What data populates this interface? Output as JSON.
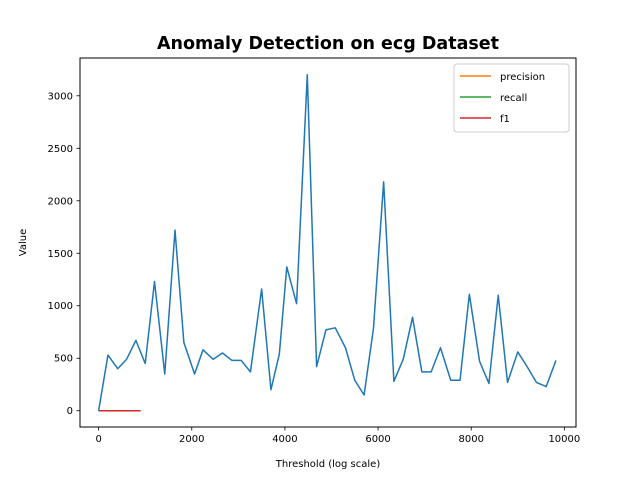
{
  "chart_data": {
    "type": "line",
    "title": "Anomaly Detection on ecg Dataset",
    "xlabel": "Threshold (log scale)",
    "ylabel": "Value",
    "xlim": [
      -400,
      10250
    ],
    "ylim": [
      -155,
      3360
    ],
    "xticks": [
      0,
      2000,
      4000,
      6000,
      8000,
      10000
    ],
    "yticks": [
      0,
      500,
      1000,
      1500,
      2000,
      2500,
      3000
    ],
    "legend_position": "top-right",
    "grid": false,
    "legend": [
      {
        "name": "precision",
        "color": "#ff7f0e"
      },
      {
        "name": "recall",
        "color": "#2ca02c"
      },
      {
        "name": "f1",
        "color": "#d62728"
      }
    ],
    "series": [
      {
        "name": "precision",
        "color": "#ff7f0e",
        "x": [
          0,
          900
        ],
        "y": [
          0,
          0
        ]
      },
      {
        "name": "recall",
        "color": "#2ca02c",
        "x": [
          0,
          900
        ],
        "y": [
          0,
          0
        ]
      },
      {
        "name": "f1",
        "color": "#d62728",
        "x": [
          0,
          900
        ],
        "y": [
          0,
          0
        ]
      },
      {
        "name": "",
        "color": "#1f77b4",
        "x": [
          0,
          200,
          410,
          600,
          800,
          1000,
          1200,
          1420,
          1640,
          1830,
          2060,
          2240,
          2460,
          2660,
          2860,
          3060,
          3260,
          3500,
          3700,
          3880,
          4040,
          4250,
          4480,
          4680,
          4880,
          5080,
          5300,
          5500,
          5700,
          5900,
          6120,
          6340,
          6540,
          6740,
          6940,
          7140,
          7340,
          7560,
          7760,
          7960,
          8180,
          8380,
          8580,
          8780,
          9000,
          9200,
          9400,
          9610,
          9820
        ],
        "y": [
          0,
          530,
          400,
          490,
          670,
          450,
          1230,
          350,
          1720,
          650,
          350,
          580,
          490,
          550,
          480,
          480,
          370,
          1160,
          200,
          540,
          1370,
          1020,
          3200,
          420,
          770,
          790,
          600,
          290,
          150,
          780,
          2180,
          280,
          490,
          890,
          370,
          370,
          600,
          290,
          290,
          1110,
          470,
          260,
          1100,
          270,
          560,
          420,
          270,
          230,
          480
        ]
      }
    ]
  }
}
